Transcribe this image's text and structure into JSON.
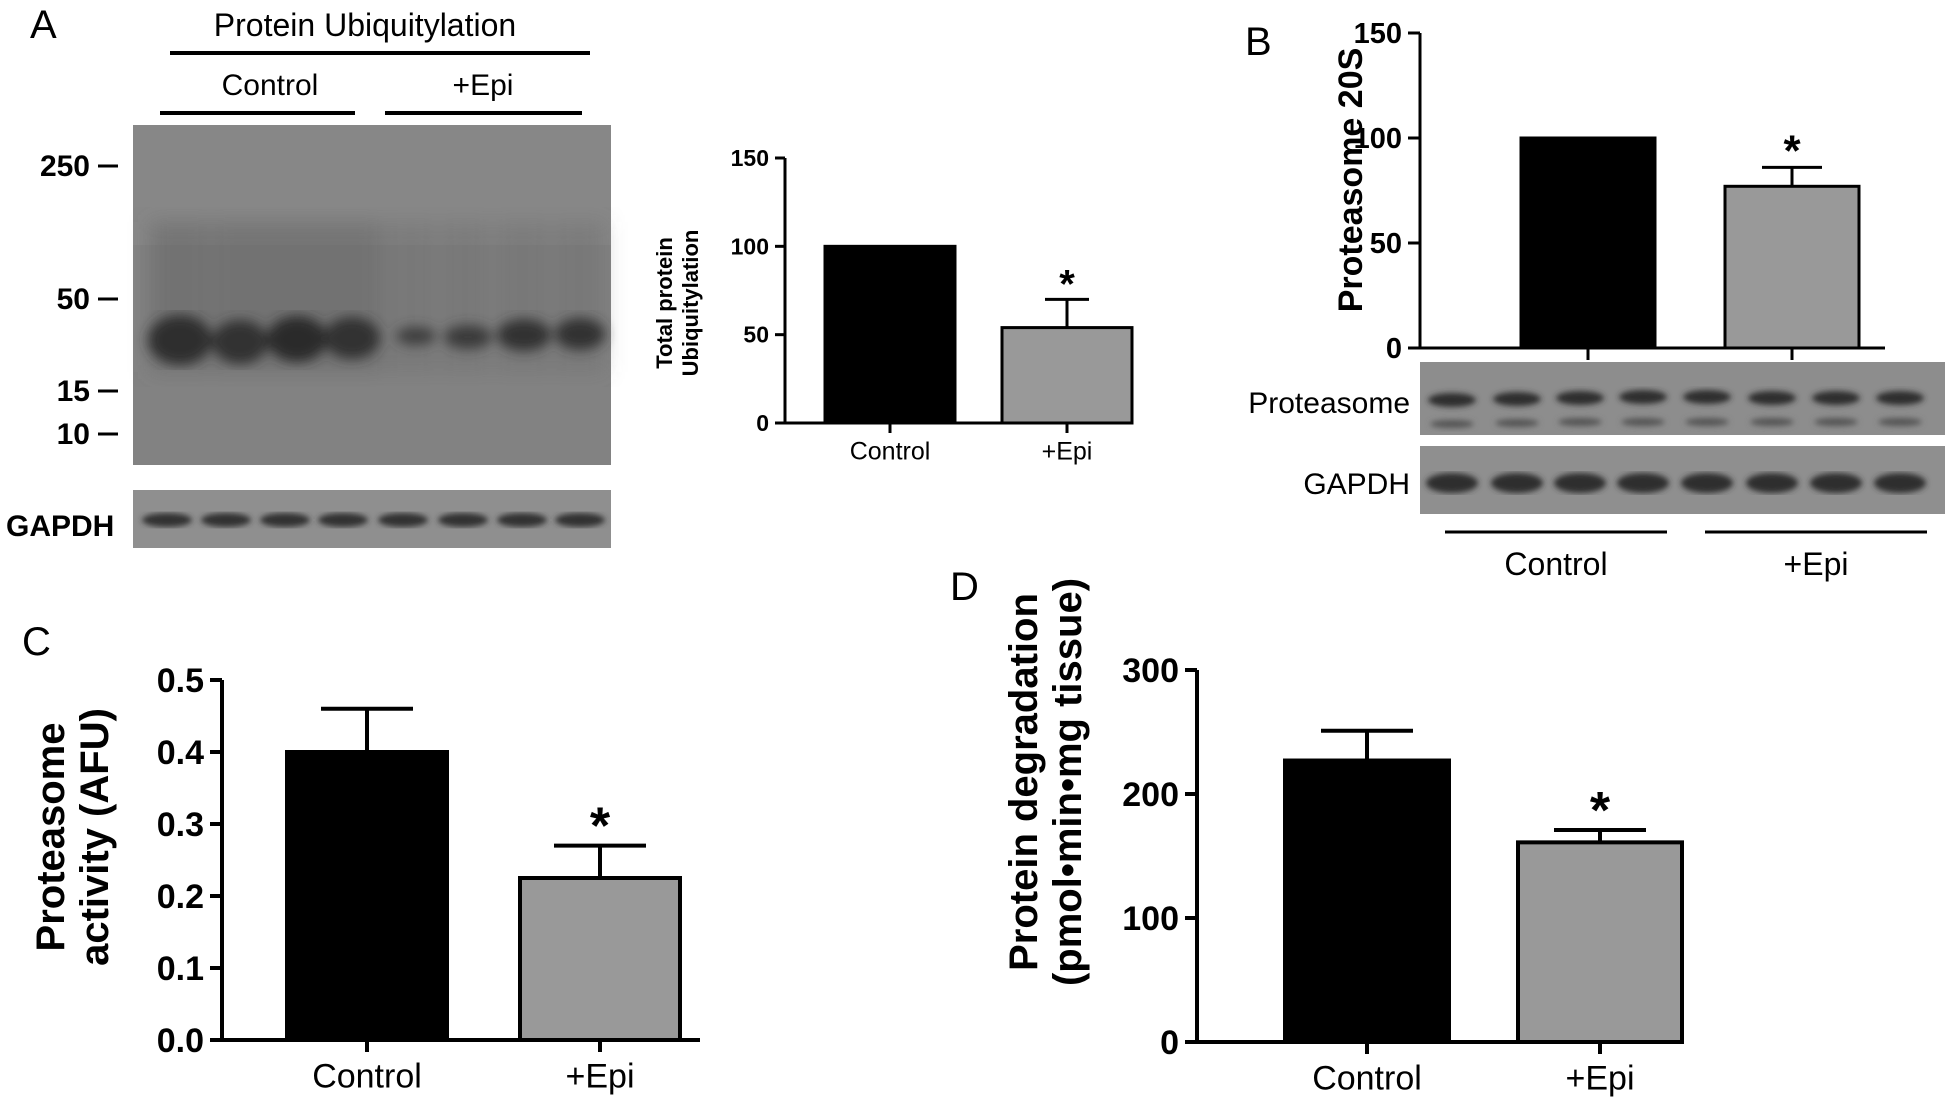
{
  "panels": {
    "a": {
      "letter": "A",
      "blot_title": "Protein Ubiquitylation",
      "group_labels": [
        "Control",
        "+Epi"
      ],
      "mw_markers": [
        "250",
        "50",
        "15",
        "10"
      ],
      "loading_label": "GAPDH"
    },
    "b": {
      "letter": "B",
      "band_label": "Proteasome",
      "loading_label": "GAPDH",
      "group_labels": [
        "Control",
        "+Epi"
      ]
    },
    "c": {
      "letter": "C"
    },
    "d": {
      "letter": "D"
    }
  },
  "colors": {
    "control_bar": "#000000",
    "epi_bar": "#999999",
    "blot_background": "#7d7d7d"
  },
  "chart_data": [
    {
      "id": "total-protein-ubiquitylation",
      "type": "bar",
      "categories": [
        "Control",
        "+Epi"
      ],
      "values": [
        100,
        54
      ],
      "errors": [
        0,
        16
      ],
      "significance": [
        "",
        "*"
      ],
      "ylabel": "Total protein Ubiquitylation",
      "ylim": [
        0,
        150
      ],
      "yticks": [
        "0",
        "50",
        "100",
        "150"
      ]
    },
    {
      "id": "proteasome-20s",
      "type": "bar",
      "categories": [
        "Control",
        "+Epi"
      ],
      "values": [
        100,
        77
      ],
      "errors": [
        0,
        9
      ],
      "significance": [
        "",
        "*"
      ],
      "ylabel": "Proteasome 20S",
      "ylim": [
        0,
        150
      ],
      "yticks": [
        "0",
        "50",
        "100",
        "150"
      ]
    },
    {
      "id": "proteasome-activity",
      "type": "bar",
      "categories": [
        "Control",
        "+Epi"
      ],
      "values": [
        0.4,
        0.225
      ],
      "errors": [
        0.06,
        0.045
      ],
      "significance": [
        "",
        "*"
      ],
      "ylabel_lines": [
        "Proteasome",
        "activity (AFU)"
      ],
      "ylim": [
        0,
        0.5
      ],
      "yticks": [
        "0.0",
        "0.1",
        "0.2",
        "0.3",
        "0.4",
        "0.5"
      ]
    },
    {
      "id": "protein-degradation",
      "type": "bar",
      "categories": [
        "Control",
        "+Epi"
      ],
      "values": [
        227,
        161
      ],
      "errors": [
        24,
        10
      ],
      "significance": [
        "",
        "*"
      ],
      "ylabel_lines": [
        "Protein degradation",
        "(pmol•min•mg tissue)"
      ],
      "ylim": [
        0,
        300
      ],
      "yticks": [
        "0",
        "100",
        "200",
        "300"
      ]
    }
  ]
}
